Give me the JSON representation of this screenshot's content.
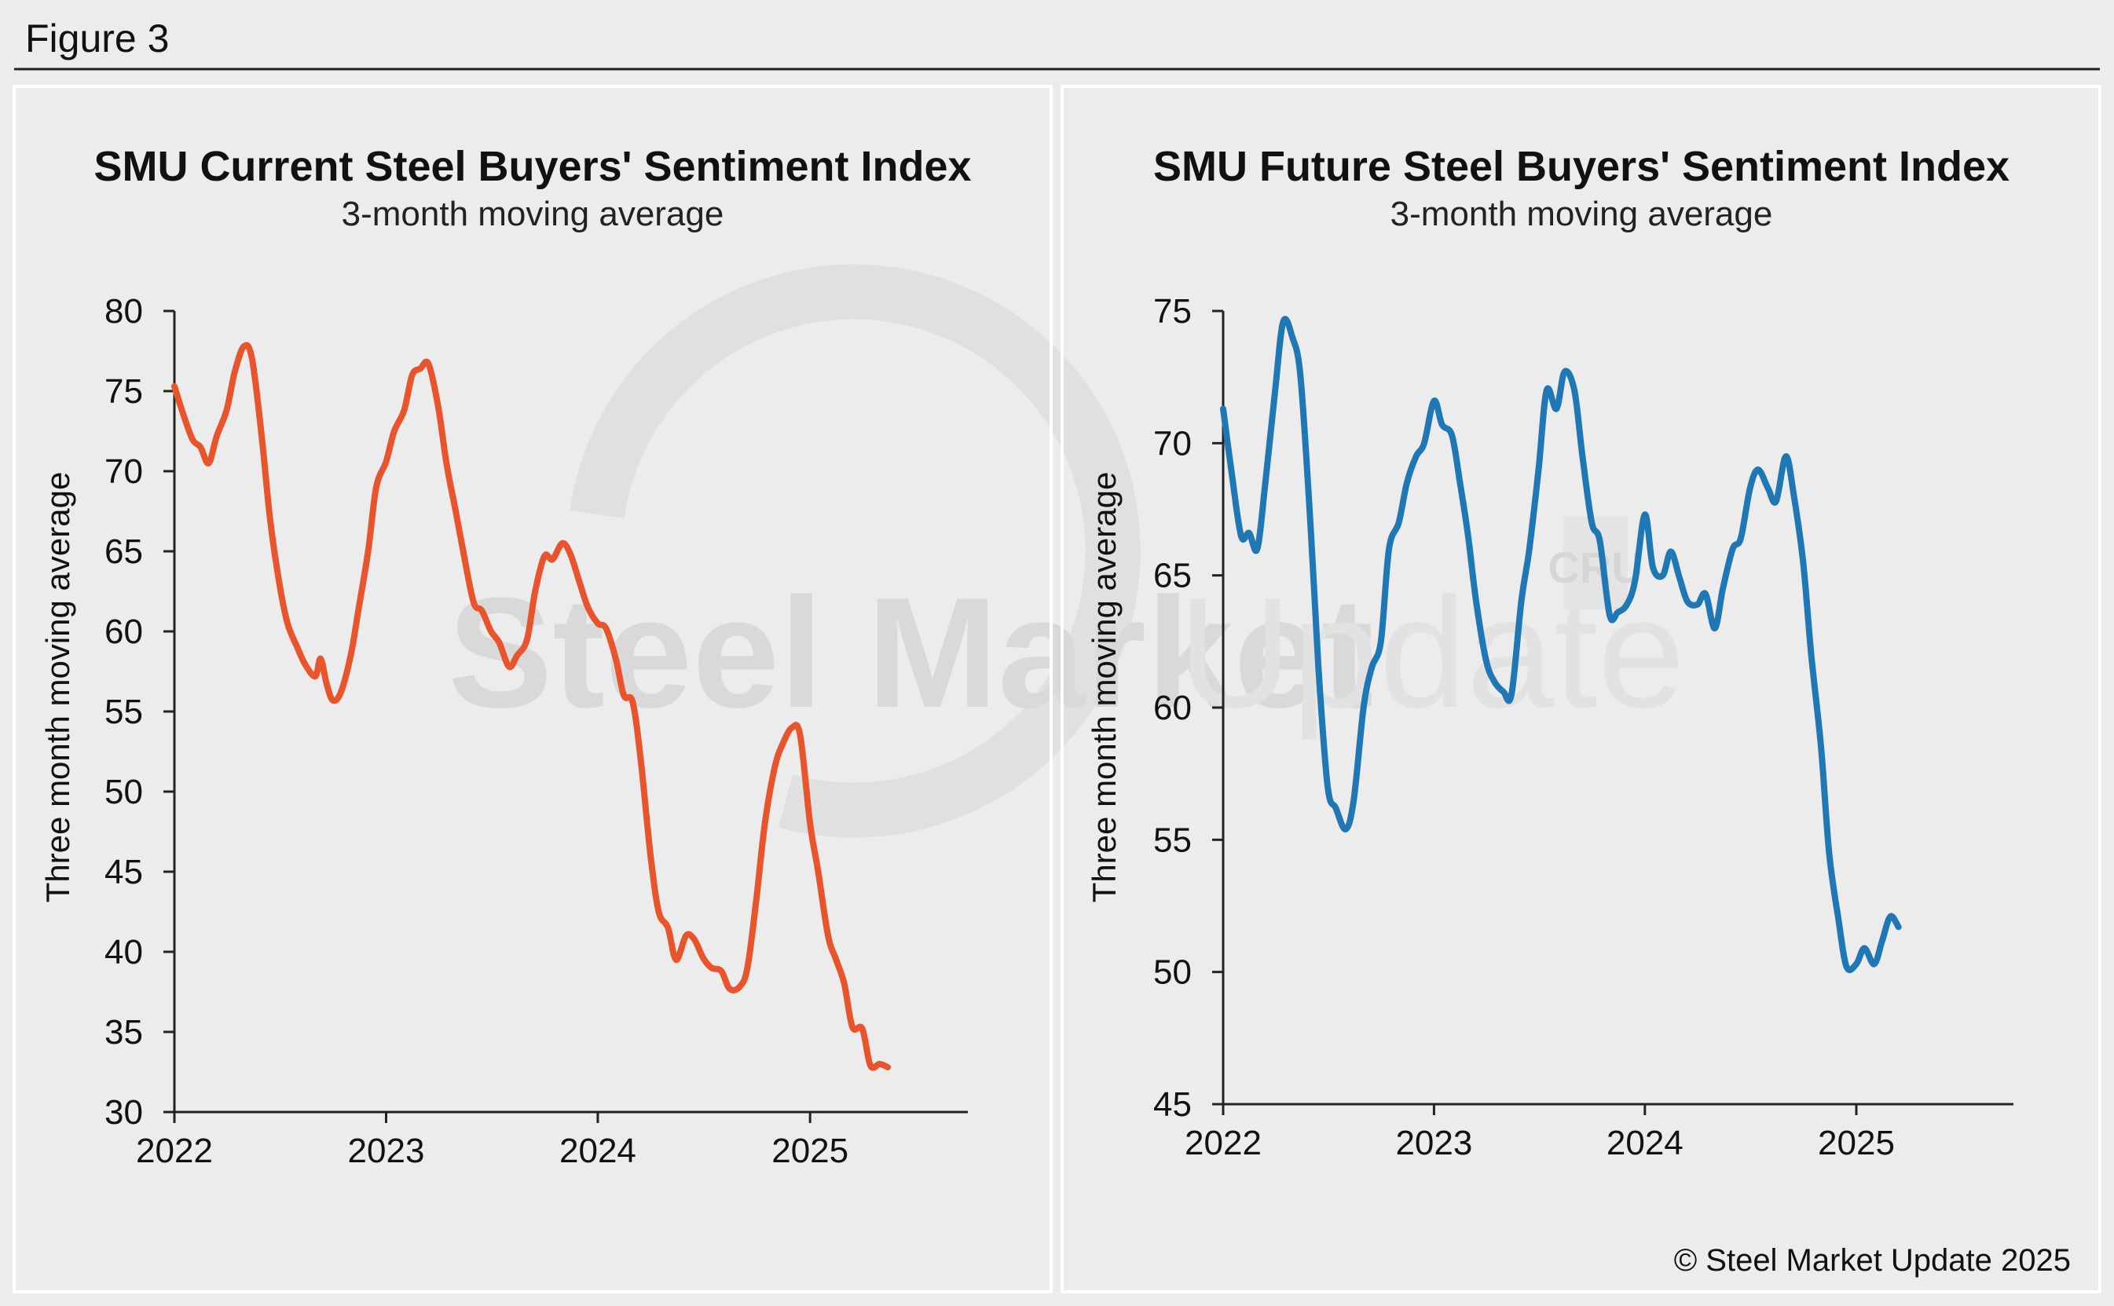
{
  "figure_label": "Figure 3",
  "credit": "© Steel Market Update 2025",
  "watermark": {
    "brand_bold": "Steel Market",
    "brand_light": "Update",
    "badge": "CRU"
  },
  "colors": {
    "current_line": "#e8542c",
    "future_line": "#1f77b4",
    "background": "#ececec"
  },
  "chart_data": [
    {
      "type": "line",
      "title": "SMU Current Steel Buyers' Sentiment Index",
      "subtitle": "3-month moving average",
      "xlabel": "",
      "ylabel": "Three month moving average",
      "ylim": [
        30,
        80
      ],
      "yticks": [
        30,
        35,
        40,
        45,
        50,
        55,
        60,
        65,
        70,
        75,
        80
      ],
      "xlim": [
        "2022-01-01",
        "2025-09-30"
      ],
      "xticks": [
        "2022",
        "2023",
        "2024",
        "2025"
      ],
      "grid": false,
      "series": [
        {
          "color": "#e8542c",
          "points": [
            [
              "2022-01-01",
              75.3
            ],
            [
              "2022-01-15",
              73.7
            ],
            [
              "2022-02-01",
              72.0
            ],
            [
              "2022-02-15",
              71.5
            ],
            [
              "2022-03-01",
              70.5
            ],
            [
              "2022-03-15",
              72.2
            ],
            [
              "2022-04-01",
              73.8
            ],
            [
              "2022-04-15",
              76.2
            ],
            [
              "2022-05-01",
              77.8
            ],
            [
              "2022-05-15",
              77.0
            ],
            [
              "2022-06-01",
              72.0
            ],
            [
              "2022-06-15",
              67.0
            ],
            [
              "2022-07-01",
              63.0
            ],
            [
              "2022-07-15",
              60.5
            ],
            [
              "2022-08-01",
              59.0
            ],
            [
              "2022-08-15",
              57.9
            ],
            [
              "2022-09-01",
              57.2
            ],
            [
              "2022-09-10",
              58.3
            ],
            [
              "2022-09-20",
              56.8
            ],
            [
              "2022-10-01",
              55.7
            ],
            [
              "2022-10-15",
              56.2
            ],
            [
              "2022-11-01",
              58.5
            ],
            [
              "2022-11-15",
              61.5
            ],
            [
              "2022-12-01",
              65.0
            ],
            [
              "2022-12-15",
              69.0
            ],
            [
              "2023-01-01",
              70.6
            ],
            [
              "2023-01-15",
              72.5
            ],
            [
              "2023-02-01",
              73.8
            ],
            [
              "2023-02-15",
              76.0
            ],
            [
              "2023-03-01",
              76.4
            ],
            [
              "2023-03-15",
              76.7
            ],
            [
              "2023-04-01",
              74.0
            ],
            [
              "2023-04-15",
              70.5
            ],
            [
              "2023-05-01",
              67.5
            ],
            [
              "2023-05-15",
              64.8
            ],
            [
              "2023-06-01",
              61.8
            ],
            [
              "2023-06-15",
              61.3
            ],
            [
              "2023-07-01",
              60.0
            ],
            [
              "2023-07-15",
              59.3
            ],
            [
              "2023-08-01",
              57.8
            ],
            [
              "2023-08-15",
              58.5
            ],
            [
              "2023-09-01",
              59.5
            ],
            [
              "2023-09-15",
              62.5
            ],
            [
              "2023-10-01",
              64.7
            ],
            [
              "2023-10-15",
              64.5
            ],
            [
              "2023-11-01",
              65.5
            ],
            [
              "2023-11-15",
              64.8
            ],
            [
              "2023-12-01",
              63.0
            ],
            [
              "2023-12-15",
              61.5
            ],
            [
              "2024-01-01",
              60.5
            ],
            [
              "2024-01-15",
              60.2
            ],
            [
              "2024-02-01",
              58.3
            ],
            [
              "2024-02-15",
              56.0
            ],
            [
              "2024-03-01",
              55.6
            ],
            [
              "2024-03-15",
              52.0
            ],
            [
              "2024-04-01",
              46.0
            ],
            [
              "2024-04-15",
              42.5
            ],
            [
              "2024-05-01",
              41.5
            ],
            [
              "2024-05-15",
              39.5
            ],
            [
              "2024-06-01",
              41.0
            ],
            [
              "2024-06-15",
              40.8
            ],
            [
              "2024-07-01",
              39.6
            ],
            [
              "2024-07-15",
              39.0
            ],
            [
              "2024-08-01",
              38.8
            ],
            [
              "2024-08-15",
              37.7
            ],
            [
              "2024-09-01",
              37.8
            ],
            [
              "2024-09-15",
              39.0
            ],
            [
              "2024-10-01",
              43.5
            ],
            [
              "2024-10-15",
              48.0
            ],
            [
              "2024-11-01",
              51.5
            ],
            [
              "2024-11-15",
              53.0
            ],
            [
              "2024-12-01",
              54.0
            ],
            [
              "2024-12-15",
              53.5
            ],
            [
              "2025-01-01",
              48.0
            ],
            [
              "2025-01-15",
              45.0
            ],
            [
              "2025-02-01",
              41.0
            ],
            [
              "2025-02-15",
              39.5
            ],
            [
              "2025-03-01",
              38.0
            ],
            [
              "2025-03-15",
              35.3
            ],
            [
              "2025-04-01",
              35.2
            ],
            [
              "2025-04-15",
              32.9
            ],
            [
              "2025-05-01",
              33.0
            ],
            [
              "2025-05-15",
              32.8
            ]
          ]
        }
      ]
    },
    {
      "type": "line",
      "title": "SMU Future Steel Buyers' Sentiment Index",
      "subtitle": "3-month moving average",
      "xlabel": "",
      "ylabel": "Three month moving average",
      "ylim": [
        45,
        75
      ],
      "yticks": [
        45,
        50,
        55,
        60,
        65,
        70,
        75
      ],
      "xlim": [
        "2022-01-01",
        "2025-09-30"
      ],
      "xticks": [
        "2022",
        "2023",
        "2024",
        "2025"
      ],
      "grid": false,
      "series": [
        {
          "color": "#1f77b4",
          "points": [
            [
              "2022-01-01",
              71.3
            ],
            [
              "2022-01-15",
              69.0
            ],
            [
              "2022-02-01",
              66.5
            ],
            [
              "2022-02-15",
              66.6
            ],
            [
              "2022-03-01",
              66.0
            ],
            [
              "2022-03-15",
              68.5
            ],
            [
              "2022-04-01",
              72.0
            ],
            [
              "2022-04-15",
              74.6
            ],
            [
              "2022-05-01",
              74.0
            ],
            [
              "2022-05-15",
              72.5
            ],
            [
              "2022-06-01",
              67.0
            ],
            [
              "2022-06-15",
              61.5
            ],
            [
              "2022-07-01",
              57.0
            ],
            [
              "2022-07-15",
              56.2
            ],
            [
              "2022-08-01",
              55.4
            ],
            [
              "2022-08-15",
              56.5
            ],
            [
              "2022-09-01",
              60.0
            ],
            [
              "2022-09-15",
              61.5
            ],
            [
              "2022-10-01",
              62.5
            ],
            [
              "2022-10-15",
              66.0
            ],
            [
              "2022-11-01",
              67.0
            ],
            [
              "2022-11-15",
              68.5
            ],
            [
              "2022-12-01",
              69.5
            ],
            [
              "2022-12-15",
              70.0
            ],
            [
              "2023-01-01",
              71.6
            ],
            [
              "2023-01-15",
              70.7
            ],
            [
              "2023-02-01",
              70.3
            ],
            [
              "2023-02-15",
              68.5
            ],
            [
              "2023-03-01",
              66.5
            ],
            [
              "2023-03-15",
              64.0
            ],
            [
              "2023-04-01",
              61.8
            ],
            [
              "2023-04-15",
              61.0
            ],
            [
              "2023-05-01",
              60.6
            ],
            [
              "2023-05-15",
              60.5
            ],
            [
              "2023-06-01",
              64.0
            ],
            [
              "2023-06-15",
              66.0
            ],
            [
              "2023-07-01",
              69.0
            ],
            [
              "2023-07-15",
              72.0
            ],
            [
              "2023-08-01",
              71.3
            ],
            [
              "2023-08-15",
              72.7
            ],
            [
              "2023-09-01",
              72.0
            ],
            [
              "2023-09-15",
              69.5
            ],
            [
              "2023-10-01",
              67.0
            ],
            [
              "2023-10-15",
              66.3
            ],
            [
              "2023-11-01",
              63.5
            ],
            [
              "2023-11-15",
              63.6
            ],
            [
              "2023-12-01",
              63.9
            ],
            [
              "2023-12-15",
              64.8
            ],
            [
              "2024-01-01",
              67.3
            ],
            [
              "2024-01-15",
              65.3
            ],
            [
              "2024-02-01",
              65.0
            ],
            [
              "2024-02-15",
              65.9
            ],
            [
              "2024-03-01",
              64.9
            ],
            [
              "2024-03-15",
              64.0
            ],
            [
              "2024-04-01",
              63.9
            ],
            [
              "2024-04-15",
              64.3
            ],
            [
              "2024-05-01",
              63.0
            ],
            [
              "2024-05-15",
              64.5
            ],
            [
              "2024-06-01",
              66.0
            ],
            [
              "2024-06-15",
              66.4
            ],
            [
              "2024-07-01",
              68.3
            ],
            [
              "2024-07-15",
              69.0
            ],
            [
              "2024-08-01",
              68.3
            ],
            [
              "2024-08-15",
              67.8
            ],
            [
              "2024-09-01",
              69.5
            ],
            [
              "2024-09-15",
              68.0
            ],
            [
              "2024-10-01",
              65.5
            ],
            [
              "2024-10-15",
              62.0
            ],
            [
              "2024-11-01",
              58.5
            ],
            [
              "2024-11-15",
              54.5
            ],
            [
              "2024-12-01",
              52.0
            ],
            [
              "2024-12-15",
              50.2
            ],
            [
              "2025-01-01",
              50.3
            ],
            [
              "2025-01-15",
              50.9
            ],
            [
              "2025-02-01",
              50.3
            ],
            [
              "2025-02-15",
              51.2
            ],
            [
              "2025-03-01",
              52.1
            ],
            [
              "2025-03-15",
              51.7
            ]
          ]
        }
      ]
    }
  ]
}
